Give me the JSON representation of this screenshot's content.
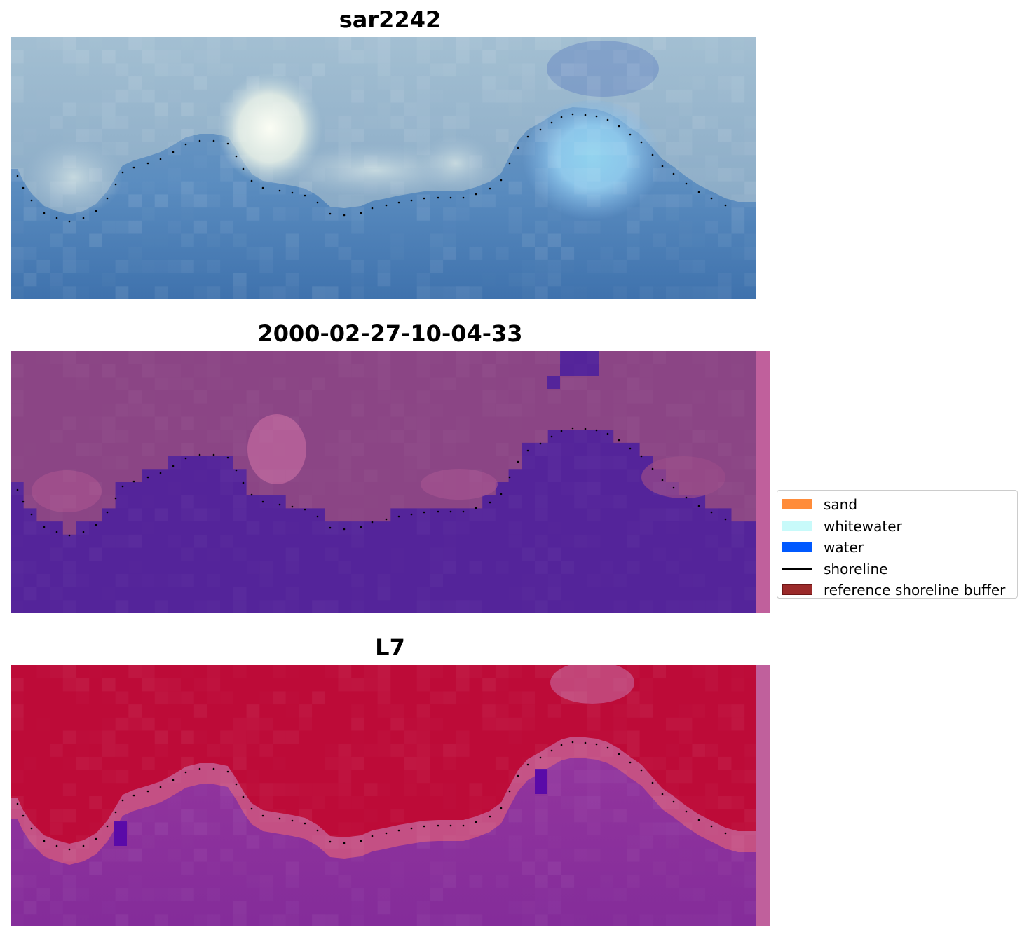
{
  "panels": [
    {
      "title": "sar2242",
      "kind": "rgb",
      "colors": {
        "base": "#4a7db5",
        "sky": "#8fb2cc",
        "white": "#fbfdf4",
        "cyan": "#7ec9e8"
      }
    },
    {
      "title": "2000-02-27-10-04-33",
      "kind": "classification",
      "colors": {
        "water": "#54249a",
        "land": "#8b4585",
        "pink": "#b8639a",
        "strip": "#c0609c"
      }
    },
    {
      "title": "L7",
      "kind": "index",
      "colors": {
        "high": "#bd0b38",
        "mid": "#c04d7a",
        "low": "#8a2d9a",
        "deep": "#5a0aa8",
        "strip": "#c0609c"
      }
    }
  ],
  "legend": {
    "items": [
      {
        "label": "sand",
        "type": "patch",
        "color": "#ff8c3a"
      },
      {
        "label": "whitewater",
        "type": "patch",
        "color": "#c8fafa"
      },
      {
        "label": "water",
        "type": "patch",
        "color": "#0059ff"
      },
      {
        "label": "shoreline",
        "type": "line",
        "color": "#000000"
      },
      {
        "label": "reference shoreline buffer",
        "type": "patch",
        "color": "#9b2a2a",
        "edge": "#6e1616"
      }
    ]
  }
}
